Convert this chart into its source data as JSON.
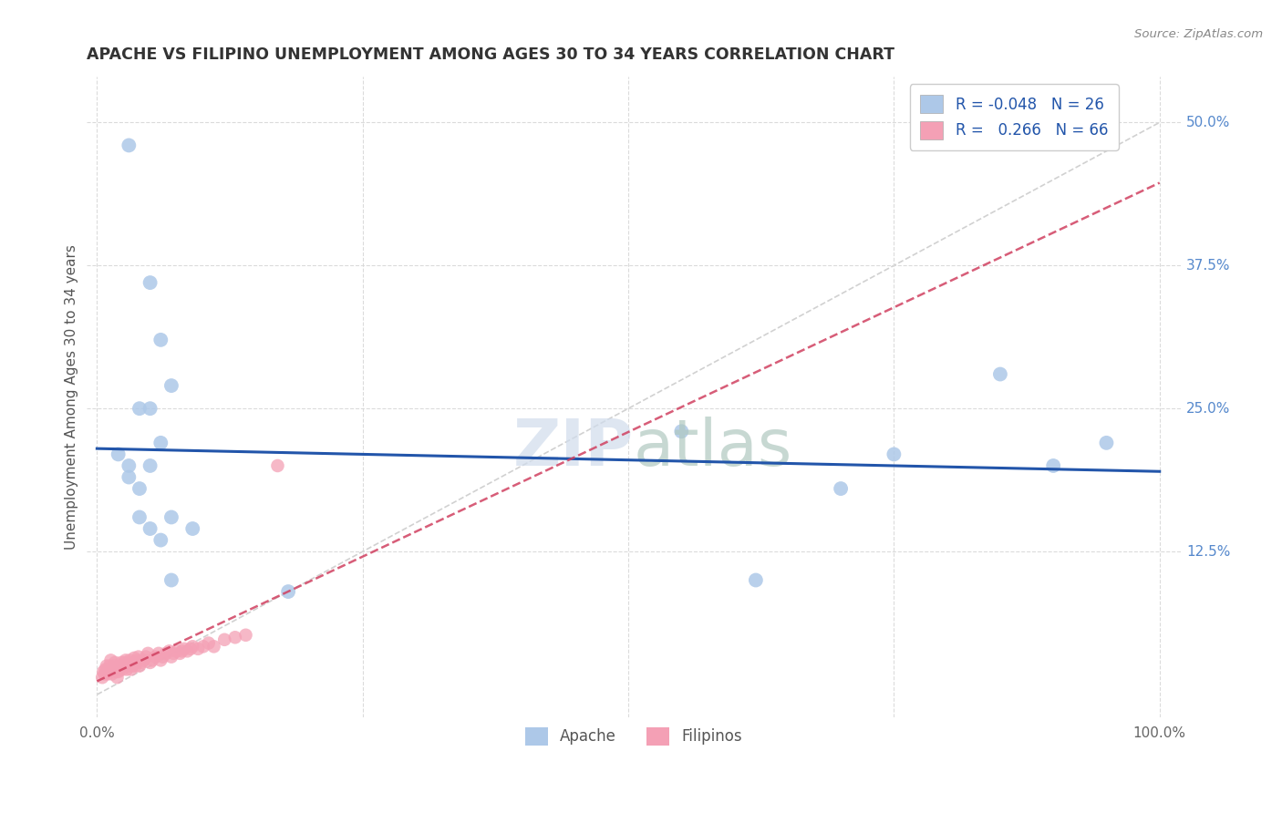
{
  "title": "APACHE VS FILIPINO UNEMPLOYMENT AMONG AGES 30 TO 34 YEARS CORRELATION CHART",
  "source": "Source: ZipAtlas.com",
  "ylabel": "Unemployment Among Ages 30 to 34 years",
  "xlim": [
    0.0,
    1.0
  ],
  "ylim": [
    0.0,
    0.52
  ],
  "xticks": [
    0.0,
    0.25,
    0.5,
    0.75,
    1.0
  ],
  "yticks": [
    0.125,
    0.25,
    0.375,
    0.5
  ],
  "ytick_labels": [
    "12.5%",
    "25.0%",
    "37.5%",
    "50.0%"
  ],
  "apache_r": -0.048,
  "apache_n": 26,
  "filipino_r": 0.266,
  "filipino_n": 66,
  "apache_color": "#adc8e8",
  "filipino_color": "#f4a0b5",
  "apache_line_color": "#2255aa",
  "filipino_line_color": "#d04060",
  "ref_line_color": "#cccccc",
  "background_color": "#ffffff",
  "grid_color": "#d8d8d8",
  "watermark": "ZIPatlas",
  "apache_x": [
    0.03,
    0.05,
    0.06,
    0.07,
    0.04,
    0.05,
    0.02,
    0.03,
    0.06,
    0.03,
    0.05,
    0.04,
    0.07,
    0.55,
    0.75,
    0.85,
    0.9,
    0.95,
    0.62,
    0.7,
    0.18,
    0.04,
    0.05,
    0.06,
    0.07,
    0.09
  ],
  "apache_y": [
    0.48,
    0.36,
    0.31,
    0.27,
    0.25,
    0.25,
    0.21,
    0.2,
    0.22,
    0.19,
    0.2,
    0.18,
    0.1,
    0.23,
    0.21,
    0.28,
    0.2,
    0.22,
    0.1,
    0.18,
    0.09,
    0.155,
    0.145,
    0.135,
    0.155,
    0.145
  ],
  "filipino_x": [
    0.005,
    0.006,
    0.007,
    0.008,
    0.009,
    0.01,
    0.01,
    0.011,
    0.012,
    0.013,
    0.014,
    0.015,
    0.016,
    0.017,
    0.018,
    0.019,
    0.02,
    0.021,
    0.022,
    0.023,
    0.024,
    0.025,
    0.026,
    0.027,
    0.028,
    0.029,
    0.03,
    0.031,
    0.032,
    0.033,
    0.034,
    0.035,
    0.036,
    0.037,
    0.038,
    0.039,
    0.04,
    0.042,
    0.044,
    0.046,
    0.048,
    0.05,
    0.052,
    0.055,
    0.058,
    0.06,
    0.062,
    0.065,
    0.068,
    0.07,
    0.072,
    0.075,
    0.078,
    0.08,
    0.082,
    0.085,
    0.088,
    0.09,
    0.095,
    0.1,
    0.105,
    0.11,
    0.12,
    0.13,
    0.14,
    0.17
  ],
  "filipino_y": [
    0.015,
    0.02,
    0.018,
    0.022,
    0.025,
    0.02,
    0.018,
    0.022,
    0.025,
    0.03,
    0.018,
    0.022,
    0.025,
    0.028,
    0.02,
    0.015,
    0.02,
    0.022,
    0.025,
    0.028,
    0.022,
    0.025,
    0.028,
    0.03,
    0.022,
    0.025,
    0.028,
    0.03,
    0.022,
    0.025,
    0.028,
    0.032,
    0.025,
    0.028,
    0.03,
    0.033,
    0.025,
    0.028,
    0.03,
    0.033,
    0.036,
    0.028,
    0.03,
    0.033,
    0.036,
    0.03,
    0.033,
    0.036,
    0.038,
    0.033,
    0.036,
    0.038,
    0.036,
    0.038,
    0.04,
    0.038,
    0.04,
    0.042,
    0.04,
    0.042,
    0.045,
    0.042,
    0.048,
    0.05,
    0.052,
    0.2
  ]
}
